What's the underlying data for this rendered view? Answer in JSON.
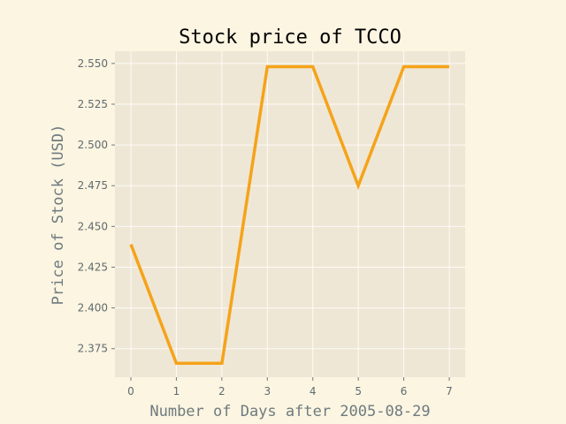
{
  "chart_data": {
    "type": "line",
    "title": "Stock price of TCCO",
    "xlabel": "Number of Days after 2005-08-29",
    "ylabel": "Price of Stock (USD)",
    "x": [
      0,
      1,
      2,
      3,
      4,
      5,
      6,
      7
    ],
    "xticks": [
      "0",
      "1",
      "2",
      "3",
      "4",
      "5",
      "6",
      "7"
    ],
    "yticks": [
      "2.375",
      "2.400",
      "2.425",
      "2.450",
      "2.475",
      "2.500",
      "2.525",
      "2.550"
    ],
    "xlim": [
      -0.35,
      7.35
    ],
    "ylim": [
      2.3575,
      2.5575
    ],
    "series": [
      {
        "values": [
          2.439,
          2.366,
          2.366,
          2.548,
          2.548,
          2.475,
          2.548,
          2.548
        ],
        "color": "#f5a31a"
      }
    ],
    "grid": true,
    "background": "#fcf5e1",
    "plot_background": "#efe7d5"
  }
}
